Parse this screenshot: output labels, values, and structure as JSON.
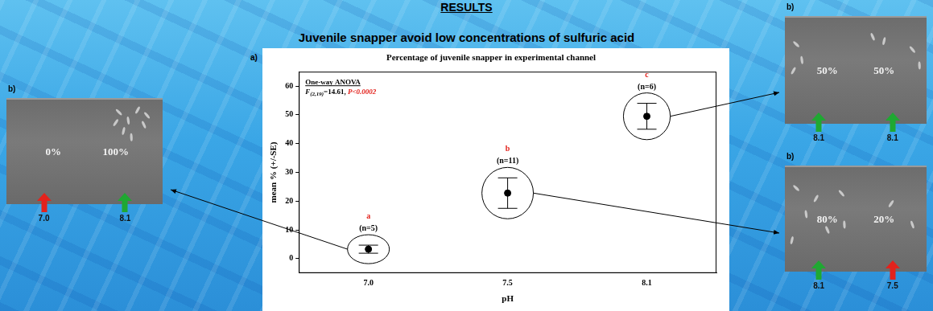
{
  "header": {
    "title": "RESULTS",
    "subtitle": "Juvenile snapper avoid low concentrations of sulfuric acid"
  },
  "chart_data": {
    "panel_label": "a)",
    "type": "scatter",
    "title": "Percentage of juvenile snapper in experimental channel",
    "x_label": "pH",
    "y_label": "mean % (+/-SE)",
    "categories": [
      "7.0",
      "7.5",
      "8.1"
    ],
    "values": [
      3.3,
      22.8,
      49.5
    ],
    "errors": [
      1.4,
      5.3,
      4.5
    ],
    "group_labels": [
      "a",
      "b",
      "c"
    ],
    "n_labels": [
      "(n=5)",
      "(n=11)",
      "(n=6)"
    ],
    "anova": {
      "title": "One-way ANOVA",
      "statistic": "F",
      "df": "(2,19)",
      "result": "=14.61,",
      "p": "P<0.0002"
    },
    "ylim": [
      -5,
      65
    ],
    "yticks": [
      0,
      10,
      20,
      30,
      40,
      50,
      60
    ],
    "grid": false,
    "marker": "circle",
    "color": "#000000"
  },
  "panels": [
    {
      "label": "b)",
      "sides": [
        {
          "percent": "0%",
          "ph": "7.0",
          "color": "#e3221c"
        },
        {
          "percent": "100%",
          "ph": "8.1",
          "color": "#1fa832"
        }
      ]
    },
    {
      "label": "b)",
      "sides": [
        {
          "percent": "50%",
          "ph": "8.1",
          "color": "#1fa832"
        },
        {
          "percent": "50%",
          "ph": "8.1",
          "color": "#1fa832"
        }
      ]
    },
    {
      "label": "b)",
      "sides": [
        {
          "percent": "80%",
          "ph": "8.1",
          "color": "#1fa832"
        },
        {
          "percent": "20%",
          "ph": "7.5",
          "color": "#e3221c"
        }
      ]
    }
  ]
}
